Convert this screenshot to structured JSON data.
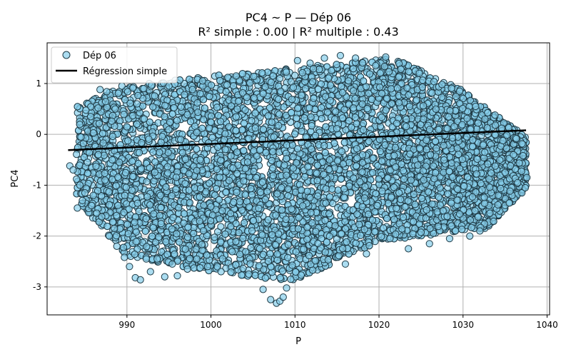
{
  "chart_data": {
    "type": "scatter",
    "title": "PC4 ~ P — Dép 06",
    "subtitle": "R² simple : 0.00 | R² multiple : 0.43",
    "xlabel": "P",
    "ylabel": "PC4",
    "xlim": [
      980.5,
      1040.3
    ],
    "ylim": [
      -3.55,
      1.8
    ],
    "xticks": [
      990,
      1000,
      1010,
      1020,
      1030,
      1040
    ],
    "yticks": [
      -3,
      -2,
      -1,
      0,
      1
    ],
    "grid": true,
    "legend_position": "top-left",
    "series": [
      {
        "name": "Dép 06",
        "kind": "scatter",
        "color": "#87ceeb",
        "edgecolor": "#1f3a45",
        "alpha": 0.7,
        "points": [
          [
            983.2,
            -0.62
          ],
          [
            983.6,
            -0.7
          ],
          [
            984.0,
            -0.88
          ],
          [
            984.1,
            -1.45
          ],
          [
            984.4,
            -1.0
          ],
          [
            984.7,
            -1.3
          ],
          [
            985.0,
            -1.15
          ],
          [
            985.3,
            -0.55
          ],
          [
            985.8,
            -1.4
          ],
          [
            986.0,
            -1.2
          ],
          [
            986.4,
            -1.55
          ],
          [
            986.6,
            -0.4
          ],
          [
            986.8,
            0.88
          ],
          [
            987.0,
            -1.62
          ],
          [
            987.4,
            -0.9
          ],
          [
            987.6,
            0.84
          ],
          [
            987.9,
            -2.0
          ],
          [
            988.2,
            0.26
          ],
          [
            988.5,
            -1.85
          ],
          [
            988.6,
            0.5
          ],
          [
            988.8,
            -2.2
          ],
          [
            989.1,
            -0.55
          ],
          [
            989.4,
            0.95
          ],
          [
            989.7,
            -2.42
          ],
          [
            990.0,
            0.15
          ],
          [
            990.3,
            -2.6
          ],
          [
            990.6,
            -1.1
          ],
          [
            991.0,
            -2.82
          ],
          [
            991.2,
            0.6
          ],
          [
            991.6,
            -2.86
          ],
          [
            992.0,
            0.9
          ],
          [
            992.3,
            -2.45
          ],
          [
            992.8,
            -2.7
          ],
          [
            993.1,
            -0.35
          ],
          [
            993.6,
            -2.45
          ],
          [
            994.0,
            -1.2
          ],
          [
            994.5,
            -2.8
          ],
          [
            995.0,
            0.95
          ],
          [
            995.4,
            -2.55
          ],
          [
            996.0,
            -2.78
          ],
          [
            996.4,
            -0.1
          ],
          [
            997.2,
            -2.65
          ],
          [
            997.8,
            0.88
          ],
          [
            998.3,
            -2.45
          ],
          [
            999.0,
            1.05
          ],
          [
            999.6,
            -2.6
          ],
          [
            1001.2,
            -2.7
          ],
          [
            1003.0,
            1.15
          ],
          [
            1004.5,
            -2.75
          ],
          [
            1006.2,
            -3.05
          ],
          [
            1007.1,
            -3.25
          ],
          [
            1007.8,
            -3.32
          ],
          [
            1008.2,
            -3.28
          ],
          [
            1008.6,
            -3.2
          ],
          [
            1009.0,
            -3.02
          ],
          [
            1009.5,
            -2.85
          ],
          [
            1010.3,
            1.45
          ],
          [
            1011.8,
            1.4
          ],
          [
            1013.5,
            1.5
          ],
          [
            1015.4,
            1.55
          ],
          [
            1016.0,
            -2.55
          ],
          [
            1017.2,
            1.5
          ],
          [
            1018.5,
            -2.35
          ],
          [
            1019.6,
            1.35
          ],
          [
            1020.8,
            1.52
          ],
          [
            1021.3,
            -2.05
          ],
          [
            1022.6,
            1.28
          ],
          [
            1023.5,
            -2.25
          ],
          [
            1024.8,
            1.2
          ],
          [
            1026.0,
            -2.15
          ],
          [
            1027.5,
            0.98
          ],
          [
            1028.4,
            -2.05
          ],
          [
            1029.6,
            0.85
          ],
          [
            1030.8,
            -2.0
          ],
          [
            1031.5,
            0.55
          ],
          [
            1032.0,
            -1.9
          ],
          [
            1032.6,
            0.3
          ],
          [
            1033.2,
            -1.55
          ],
          [
            1033.8,
            0.38
          ],
          [
            1034.2,
            -1.2
          ],
          [
            1034.6,
            0.12
          ],
          [
            1035.0,
            -0.75
          ],
          [
            1035.5,
            -1.35
          ],
          [
            1036.0,
            -0.4
          ],
          [
            1036.5,
            -0.95
          ],
          [
            1037.0,
            -1.15
          ],
          [
            1037.4,
            -1.05
          ],
          [
            1037.6,
            -0.85
          ]
        ],
        "dense_region": {
          "x_range": [
            984.0,
            1037.5
          ],
          "y_range": [
            -3.3,
            1.55
          ],
          "estimated_count": 9000
        }
      },
      {
        "name": "Régression simple",
        "kind": "line",
        "color": "#000000",
        "points": [
          [
            983.0,
            -0.31
          ],
          [
            1037.5,
            0.08
          ]
        ]
      }
    ]
  }
}
